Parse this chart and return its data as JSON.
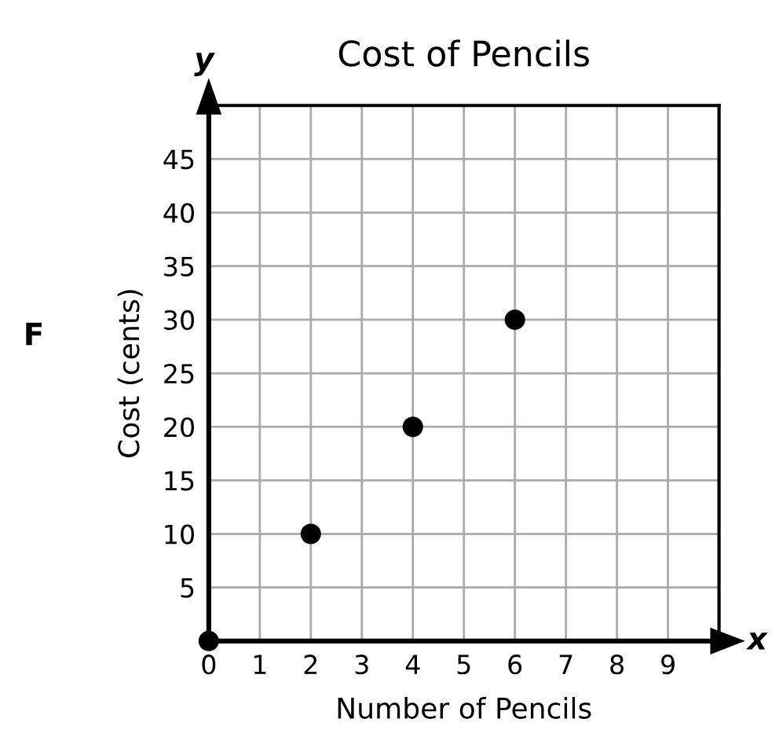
{
  "chart_data": {
    "type": "scatter",
    "title": "Cost of Pencils",
    "xlabel": "Number of Pencils",
    "ylabel": "Cost (cents)",
    "x": [
      0,
      2,
      4,
      6
    ],
    "values": [
      0,
      10,
      20,
      30
    ],
    "color": "#000000",
    "marker": "circle",
    "xlim": [
      0,
      10
    ],
    "ylim": [
      0,
      50
    ],
    "xticks": [
      0,
      1,
      2,
      3,
      4,
      5,
      6,
      7,
      8,
      9,
      {
        "value": 10,
        "label": null
      }
    ],
    "yticks": [
      {
        "value": 0,
        "label": null
      },
      5,
      10,
      15,
      20,
      25,
      30,
      35,
      40,
      45,
      {
        "value": 50,
        "label": null
      }
    ],
    "grid": true,
    "annotations": [
      "F",
      "y",
      "x"
    ]
  }
}
